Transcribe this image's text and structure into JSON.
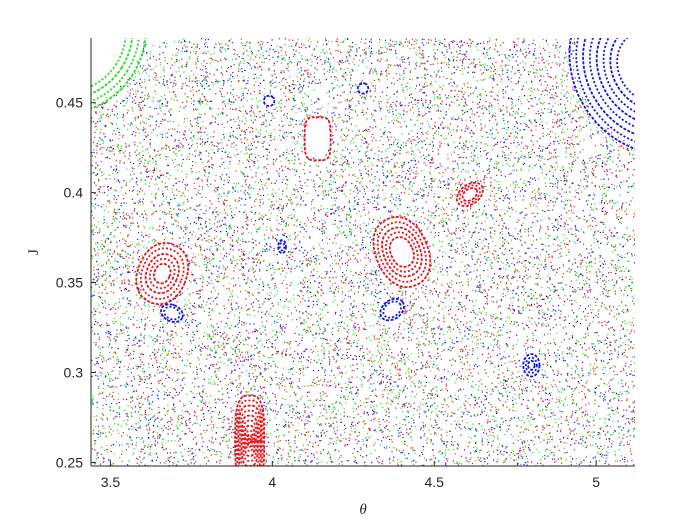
{
  "chart_data": {
    "type": "scatter",
    "title": "",
    "xlabel": "θ",
    "ylabel": "J",
    "xlim": [
      3.44,
      5.12
    ],
    "ylim": [
      0.248,
      0.486
    ],
    "xticks": [
      3.5,
      4,
      4.5,
      5
    ],
    "xtick_labels": [
      "3.5",
      "4",
      "4.5",
      "5"
    ],
    "yticks": [
      0.25,
      0.3,
      0.35,
      0.4,
      0.45
    ],
    "ytick_labels": [
      "0.25",
      "0.3",
      "0.35",
      "0.4",
      "0.45"
    ],
    "grid": false,
    "legend": "none",
    "colors": {
      "red": "#e8141c",
      "green": "#22e01e",
      "blue": "#1414e0",
      "axis": "#262626"
    },
    "chaos": {
      "counts": {
        "red": 4500,
        "green": 5000,
        "blue": 3800
      }
    },
    "islands": [
      {
        "color": "red",
        "center": [
          3.93,
          0.262
        ],
        "radii": [
          0.045,
          0.04,
          0.035,
          0.03,
          0.025,
          0.02,
          0.015,
          0.01,
          0.006,
          0.003
        ],
        "ry_scale": 0.56,
        "squareness": 3.2
      },
      {
        "color": "blue",
        "center": [
          5.17,
          0.47
        ],
        "radii": [
          0.24,
          0.22,
          0.2,
          0.18,
          0.16,
          0.14,
          0.12,
          0.1
        ],
        "ry_scale": 0.21,
        "squareness": 2.0,
        "rotate": -33
      },
      {
        "color": "green",
        "center": [
          3.4,
          0.485
        ],
        "radii": [
          0.2,
          0.18,
          0.16,
          0.14
        ],
        "ry_scale": 0.21,
        "squareness": 2.0,
        "rotate": 32
      },
      {
        "color": "red",
        "center": [
          4.4,
          0.367
        ],
        "radii": [
          0.08,
          0.068,
          0.056,
          0.045,
          0.034
        ],
        "ry_scale": 0.25,
        "squareness": 2.2,
        "rotate": -23
      },
      {
        "color": "red",
        "center": [
          3.66,
          0.355
        ],
        "radii": [
          0.075,
          0.062,
          0.048,
          0.036,
          0.024
        ],
        "ry_scale": 0.23,
        "squareness": 2.2,
        "rotate": 22
      },
      {
        "color": "red",
        "center": [
          4.61,
          0.399
        ],
        "radii": [
          0.045,
          0.035,
          0.025
        ],
        "ry_scale": 0.12,
        "squareness": 2.0,
        "rotate": -37
      },
      {
        "color": "blue",
        "center": [
          4.37,
          0.335
        ],
        "radii": [
          0.04,
          0.03
        ],
        "ry_scale": 0.13,
        "squareness": 2.0,
        "rotate": -37
      },
      {
        "color": "blue",
        "center": [
          3.69,
          0.333
        ],
        "radii": [
          0.035,
          0.025
        ],
        "ry_scale": 0.13,
        "squareness": 2.0,
        "rotate": 25
      },
      {
        "color": "blue",
        "center": [
          4.8,
          0.304
        ],
        "radii": [
          0.025,
          0.017,
          0.01
        ],
        "ry_scale": 0.25,
        "squareness": 2.0
      },
      {
        "color": "blue",
        "center": [
          4.03,
          0.37
        ],
        "radii": [
          0.012,
          0.007
        ],
        "ry_scale": 0.3,
        "squareness": 2.0
      },
      {
        "color": "blue",
        "center": [
          3.99,
          0.451
        ],
        "radii": [
          0.016
        ],
        "ry_scale": 0.18,
        "squareness": 2.0,
        "rotate": -58
      },
      {
        "color": "blue",
        "center": [
          4.28,
          0.458
        ],
        "radii": [
          0.016
        ],
        "ry_scale": 0.18,
        "squareness": 2.0,
        "rotate": -75
      },
      {
        "color": "red",
        "center": [
          4.14,
          0.43
        ],
        "radii": [
          0.04
        ],
        "ry_scale": 0.3,
        "squareness": 4.0
      }
    ]
  }
}
